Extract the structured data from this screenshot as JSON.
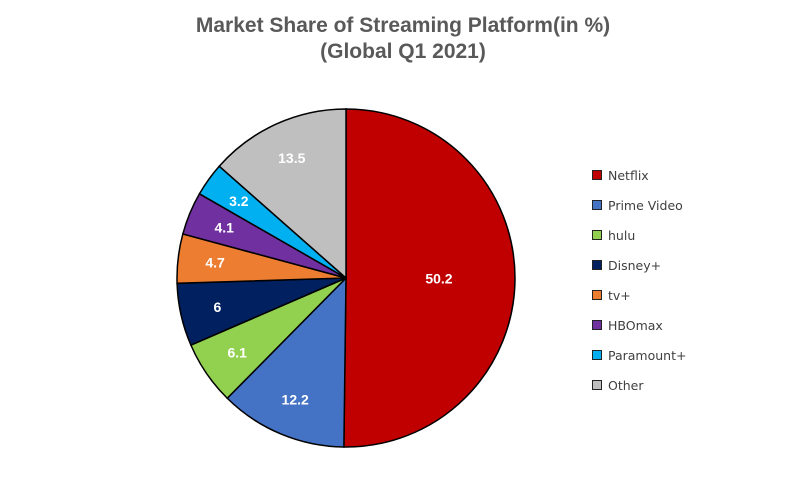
{
  "title_line1": "Market Share of Streaming Platform(in %)",
  "title_line2": "(Global Q1 2021)",
  "chart_data": {
    "type": "pie",
    "title": "Market Share of Streaming Platform(in %) (Global Q1 2021)",
    "legend_position": "right",
    "start_angle": "12 o'clock, clockwise",
    "slices": [
      {
        "label": "Netflix",
        "value": 50.2,
        "display": "50.2",
        "color": "#C00000"
      },
      {
        "label": "Prime Video",
        "value": 12.2,
        "display": "12.2",
        "color": "#4472C4"
      },
      {
        "label": "hulu",
        "value": 6.1,
        "display": "6.1",
        "color": "#92D050"
      },
      {
        "label": "Disney+",
        "value": 6,
        "display": "6",
        "color": "#002060"
      },
      {
        "label": "tv+",
        "value": 4.7,
        "display": "4.7",
        "color": "#ED7D31"
      },
      {
        "label": "HBOmax",
        "value": 4.1,
        "display": "4.1",
        "color": "#7030A0"
      },
      {
        "label": "Paramount+",
        "value": 3.2,
        "display": "3.2",
        "color": "#00B0F0"
      },
      {
        "label": "Other",
        "value": 13.5,
        "display": "13.5",
        "color": "#BFBFBF"
      }
    ]
  }
}
